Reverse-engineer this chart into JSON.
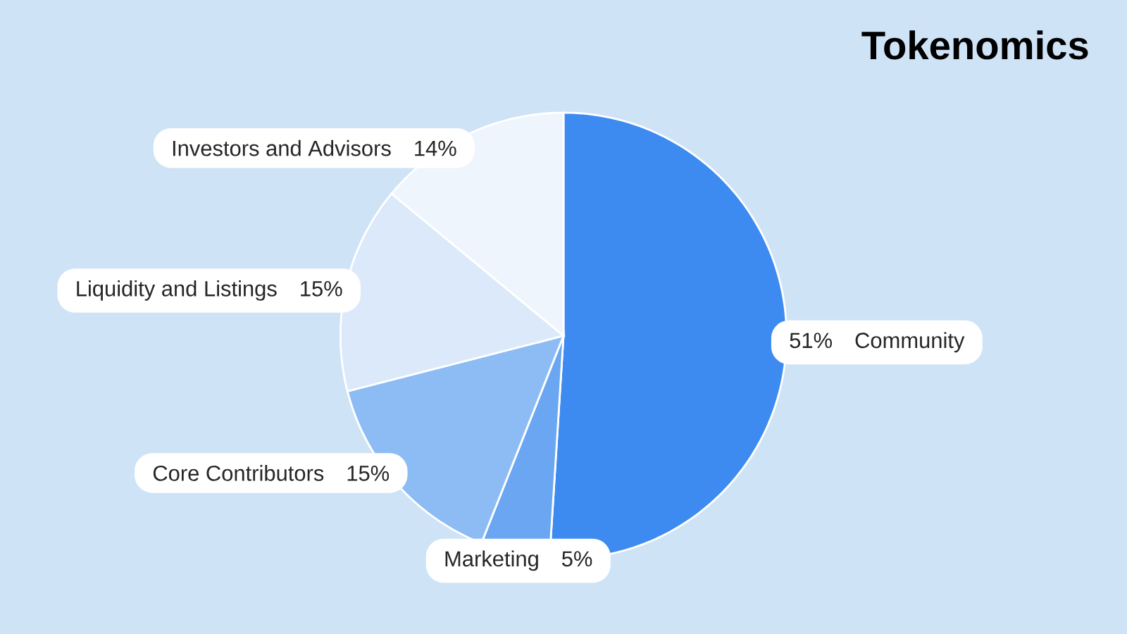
{
  "chart_data": {
    "type": "pie",
    "title": "Tokenomics",
    "categories": [
      "Community",
      "Marketing",
      "Core Contributors",
      "Liquidity and Listings",
      "Investors and Advisors"
    ],
    "values": [
      51,
      5,
      15,
      15,
      14
    ],
    "value_labels": [
      "51%",
      "5%",
      "15%",
      "15%",
      "14%"
    ],
    "colors": [
      "#3d8bf0",
      "#6aa6f2",
      "#8dbcf5",
      "#dbe9fb",
      "#eef5fd"
    ]
  }
}
